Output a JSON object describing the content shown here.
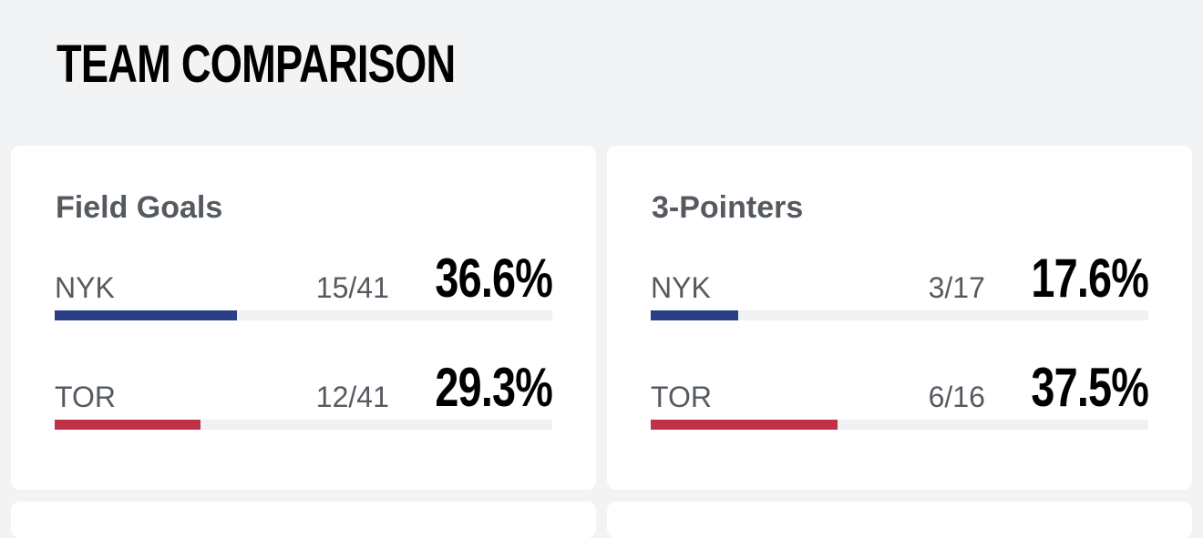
{
  "page": {
    "title": "TEAM COMPARISON"
  },
  "colors": {
    "nyk": "#2a3f87",
    "tor": "#bf3049",
    "track": "#f0f1f3"
  },
  "cards": [
    {
      "title": "Field Goals",
      "teams": [
        {
          "abbr": "NYK",
          "fraction": "15/41",
          "percent": "36.6%",
          "value": 36.6,
          "color": "#2a3f87"
        },
        {
          "abbr": "TOR",
          "fraction": "12/41",
          "percent": "29.3%",
          "value": 29.3,
          "color": "#bf3049"
        }
      ]
    },
    {
      "title": "3-Pointers",
      "teams": [
        {
          "abbr": "NYK",
          "fraction": "3/17",
          "percent": "17.6%",
          "value": 17.6,
          "color": "#2a3f87"
        },
        {
          "abbr": "TOR",
          "fraction": "6/16",
          "percent": "37.5%",
          "value": 37.5,
          "color": "#bf3049"
        }
      ]
    }
  ]
}
